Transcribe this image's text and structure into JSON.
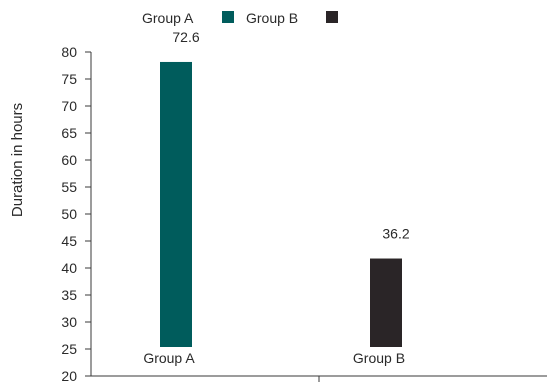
{
  "chart_data": {
    "type": "bar",
    "categories": [
      "Group A",
      "Group B"
    ],
    "values": [
      72.6,
      36.2
    ],
    "data_labels": [
      "72.6",
      "36.2"
    ],
    "colors": [
      "#005c5c",
      "#2a2527"
    ],
    "title": "",
    "xlabel": "",
    "ylabel": "Duration in hours",
    "ylim": [
      20,
      80
    ],
    "yticks": [
      20,
      25,
      30,
      35,
      40,
      45,
      50,
      55,
      60,
      65,
      70,
      75,
      80
    ],
    "ytick_labels": [
      "20",
      "25",
      "30",
      "35",
      "40",
      "45",
      "50",
      "55",
      "60",
      "65",
      "70",
      "75",
      "80"
    ],
    "grid": false,
    "legend": {
      "placement": "top",
      "entries": [
        {
          "name": "Group A",
          "color": "#005c5c"
        },
        {
          "name": "Group B",
          "color": "#2a2527"
        }
      ]
    }
  }
}
